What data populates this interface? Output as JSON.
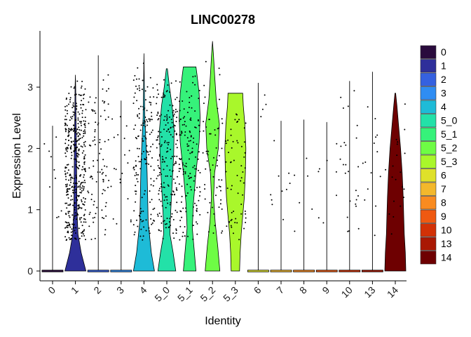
{
  "chart_data": {
    "type": "violin",
    "title": "LINC00278",
    "xlabel": "Identity",
    "ylabel": "Expression Level",
    "ylim": [
      -0.15,
      3.75
    ],
    "yticks": [
      0,
      1,
      2,
      3
    ],
    "legend_position": "right",
    "categories": [
      "0",
      "1",
      "2",
      "3",
      "4",
      "5_0",
      "5_1",
      "5_2",
      "5_3",
      "6",
      "7",
      "8",
      "9",
      "10",
      "13",
      "14"
    ],
    "colors": [
      "#2a0b3d",
      "#2e2f9a",
      "#3561e0",
      "#2f8df3",
      "#1ebbd7",
      "#23e1a8",
      "#36f27a",
      "#6efc45",
      "#a9f72b",
      "#dfe12a",
      "#f3b82c",
      "#f98b20",
      "#ef5911",
      "#d23106",
      "#a91803",
      "#6e0001"
    ],
    "violins": [
      {
        "max": 2.37,
        "density": [],
        "points": 10
      },
      {
        "max": 3.2,
        "density": [
          [
            0,
            1.0
          ],
          [
            0.3,
            0.55
          ],
          [
            0.6,
            0.25
          ],
          [
            1.0,
            0.15
          ],
          [
            1.5,
            0.12
          ],
          [
            2.0,
            0.1
          ],
          [
            2.5,
            0.06
          ],
          [
            3.0,
            0.03
          ],
          [
            3.2,
            0.0
          ]
        ],
        "points": 420
      },
      {
        "max": 3.52,
        "density": [],
        "points": 90
      },
      {
        "max": 2.78,
        "density": [],
        "points": 20
      },
      {
        "max": 3.55,
        "density": [
          [
            0,
            1.0
          ],
          [
            0.3,
            0.7
          ],
          [
            0.8,
            0.4
          ],
          [
            1.2,
            0.35
          ],
          [
            1.6,
            0.3
          ],
          [
            2.0,
            0.22
          ],
          [
            2.5,
            0.08
          ],
          [
            3.0,
            0.04
          ],
          [
            3.55,
            0.0
          ]
        ],
        "points": 160
      },
      {
        "max": 3.3,
        "density": [
          [
            0,
            0.85
          ],
          [
            0.3,
            0.6
          ],
          [
            0.6,
            0.3
          ],
          [
            0.9,
            0.35
          ],
          [
            1.4,
            0.5
          ],
          [
            1.9,
            0.65
          ],
          [
            2.3,
            0.7
          ],
          [
            2.7,
            0.5
          ],
          [
            3.0,
            0.25
          ],
          [
            3.3,
            0.05
          ]
        ],
        "points": 190
      },
      {
        "max": 3.33,
        "density": [
          [
            0,
            0.6
          ],
          [
            0.3,
            0.45
          ],
          [
            0.7,
            0.25
          ],
          [
            1.1,
            0.35
          ],
          [
            1.6,
            0.6
          ],
          [
            2.1,
            0.9
          ],
          [
            2.5,
            1.0
          ],
          [
            2.9,
            0.9
          ],
          [
            3.2,
            0.7
          ],
          [
            3.33,
            0.6
          ]
        ],
        "points": 140
      },
      {
        "max": 3.75,
        "density": [
          [
            0,
            0.7
          ],
          [
            0.4,
            0.5
          ],
          [
            0.8,
            0.25
          ],
          [
            1.2,
            0.1
          ],
          [
            1.6,
            0.2
          ],
          [
            2.0,
            0.55
          ],
          [
            2.4,
            0.65
          ],
          [
            2.8,
            0.35
          ],
          [
            3.2,
            0.2
          ],
          [
            3.5,
            0.1
          ],
          [
            3.75,
            0.0
          ]
        ],
        "points": 60
      },
      {
        "max": 2.9,
        "density": [
          [
            0,
            0.4
          ],
          [
            0.3,
            0.45
          ],
          [
            0.6,
            0.55
          ],
          [
            0.9,
            0.7
          ],
          [
            1.2,
            0.85
          ],
          [
            1.6,
            0.95
          ],
          [
            2.0,
            1.0
          ],
          [
            2.4,
            0.9
          ],
          [
            2.7,
            0.75
          ],
          [
            2.9,
            0.7
          ]
        ],
        "points": 60
      },
      {
        "max": 3.07,
        "density": [],
        "points": 4
      },
      {
        "max": 2.45,
        "density": [],
        "points": 10
      },
      {
        "max": 2.47,
        "density": [],
        "points": 6
      },
      {
        "max": 2.43,
        "density": [],
        "points": 8
      },
      {
        "max": 3.1,
        "density": [],
        "points": 25
      },
      {
        "max": 3.25,
        "density": [],
        "points": 14
      },
      {
        "max": 2.9,
        "density": [
          [
            0,
            1.0
          ],
          [
            0.3,
            0.95
          ],
          [
            0.6,
            0.85
          ],
          [
            0.9,
            0.8
          ],
          [
            1.2,
            0.75
          ],
          [
            1.6,
            0.65
          ],
          [
            2.0,
            0.5
          ],
          [
            2.4,
            0.3
          ],
          [
            2.7,
            0.15
          ],
          [
            2.9,
            0.03
          ]
        ],
        "points": 20
      }
    ]
  }
}
